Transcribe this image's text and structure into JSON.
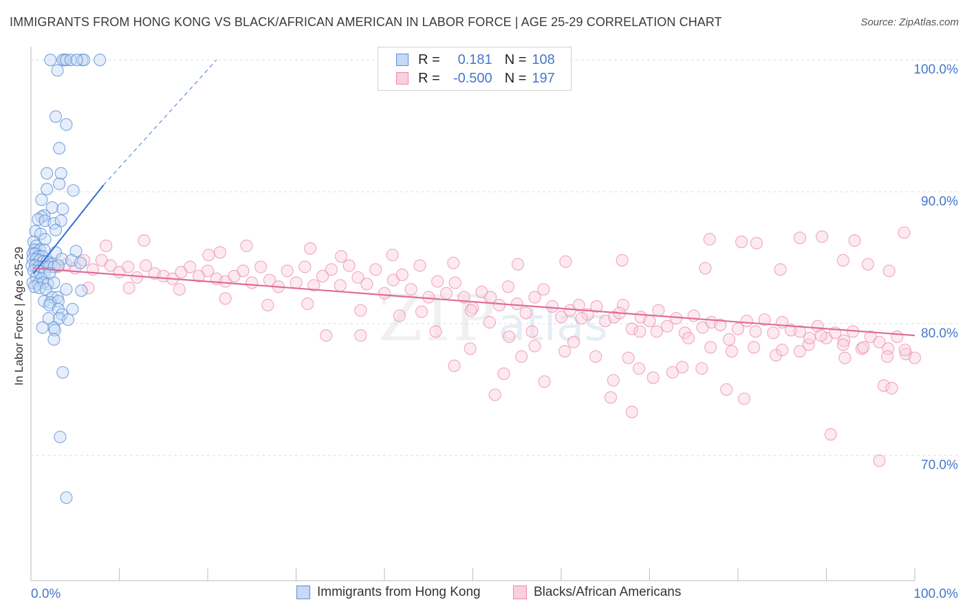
{
  "title": "IMMIGRANTS FROM HONG KONG VS BLACK/AFRICAN AMERICAN IN LABOR FORCE | AGE 25-29 CORRELATION CHART",
  "source": "Source: ZipAtlas.com",
  "watermark": {
    "main": "ZIP",
    "sub": "atlas"
  },
  "legend_top": {
    "rows": [
      {
        "r_label": "R =",
        "r_value": "0.181",
        "n_label": "N =",
        "n_value": "108"
      },
      {
        "r_label": "R =",
        "r_value": "-0.500",
        "n_label": "N =",
        "n_value": "197"
      }
    ]
  },
  "chart_data": {
    "type": "scatter",
    "title": "IMMIGRANTS FROM HONG KONG VS BLACK/AFRICAN AMERICAN IN LABOR FORCE | AGE 25-29 CORRELATION CHART",
    "xlabel": "",
    "ylabel": "In Labor Force | Age 25-29",
    "xlim": [
      0,
      100
    ],
    "ylim": [
      60.5,
      101
    ],
    "x_tick_labels": [
      "0.0%",
      "100.0%"
    ],
    "y_ticks": [
      70,
      80,
      90,
      100
    ],
    "y_tick_labels": [
      "70.0%",
      "80.0%",
      "90.0%",
      "100.0%"
    ],
    "grid": true,
    "legend_position": "bottom",
    "colors": {
      "blue": "#5b8fd8",
      "blue_fill": "#c6d9f5",
      "pink": "#ee88aa",
      "pink_fill": "#f9d0dd",
      "blue_line": "#2f6fd6",
      "pink_line": "#e06b95",
      "axis_text": "#4477cc"
    },
    "series": [
      {
        "name": "Immigrants from Hong Kong",
        "color": "#5b8fd8",
        "trend": {
          "x": [
            0.3,
            8.2
          ],
          "y": [
            83.8,
            90.5
          ],
          "extended_to": [
            21.0,
            100.0
          ]
        },
        "points": [
          [
            2.2,
            100
          ],
          [
            3.8,
            100
          ],
          [
            3.6,
            100
          ],
          [
            5.8,
            100
          ],
          [
            4.0,
            100
          ],
          [
            6.0,
            100
          ],
          [
            4.5,
            100
          ],
          [
            7.8,
            100
          ],
          [
            5.2,
            100
          ],
          [
            3.0,
            99.2
          ],
          [
            2.8,
            95.7
          ],
          [
            4.0,
            95.1
          ],
          [
            3.2,
            93.3
          ],
          [
            1.8,
            91.4
          ],
          [
            3.4,
            91.4
          ],
          [
            3.2,
            90.6
          ],
          [
            1.8,
            90.2
          ],
          [
            4.8,
            90.1
          ],
          [
            1.2,
            89.4
          ],
          [
            2.4,
            88.8
          ],
          [
            3.6,
            88.7
          ],
          [
            1.5,
            88.2
          ],
          [
            1.2,
            88.1
          ],
          [
            0.8,
            87.9
          ],
          [
            1.6,
            87.8
          ],
          [
            2.6,
            87.6
          ],
          [
            3.4,
            87.8
          ],
          [
            0.5,
            87.0
          ],
          [
            1.1,
            86.8
          ],
          [
            2.8,
            87.1
          ],
          [
            1.6,
            86.4
          ],
          [
            0.3,
            86.2
          ],
          [
            0.6,
            85.9
          ],
          [
            0.4,
            85.6
          ],
          [
            1.0,
            85.6
          ],
          [
            1.5,
            85.6
          ],
          [
            0.2,
            85.3
          ],
          [
            0.5,
            85.3
          ],
          [
            0.9,
            85.1
          ],
          [
            1.3,
            85.1
          ],
          [
            2.8,
            85.4
          ],
          [
            5.1,
            85.5
          ],
          [
            0.2,
            84.9
          ],
          [
            0.6,
            84.9
          ],
          [
            1.0,
            84.8
          ],
          [
            1.4,
            84.7
          ],
          [
            1.8,
            84.7
          ],
          [
            2.3,
            84.5
          ],
          [
            3.5,
            84.9
          ],
          [
            4.6,
            84.8
          ],
          [
            0.1,
            84.4
          ],
          [
            0.5,
            84.4
          ],
          [
            0.9,
            84.3
          ],
          [
            1.4,
            84.3
          ],
          [
            2.0,
            84.3
          ],
          [
            2.6,
            84.3
          ],
          [
            3.1,
            84.4
          ],
          [
            5.6,
            84.6
          ],
          [
            0.3,
            84.0
          ],
          [
            0.9,
            84.0
          ],
          [
            1.5,
            83.8
          ],
          [
            2.1,
            83.8
          ],
          [
            0.6,
            83.5
          ],
          [
            1.2,
            83.4
          ],
          [
            0.2,
            83.1
          ],
          [
            0.8,
            83.0
          ],
          [
            1.4,
            83.1
          ],
          [
            1.9,
            83.0
          ],
          [
            2.6,
            83.1
          ],
          [
            0.4,
            82.8
          ],
          [
            1.0,
            82.7
          ],
          [
            1.7,
            82.6
          ],
          [
            4.0,
            82.6
          ],
          [
            5.7,
            82.5
          ],
          [
            2.4,
            82.0
          ],
          [
            3.0,
            82.0
          ],
          [
            1.5,
            81.7
          ],
          [
            2.2,
            81.6
          ],
          [
            3.1,
            81.7
          ],
          [
            2.1,
            81.4
          ],
          [
            3.1,
            81.1
          ],
          [
            4.7,
            81.1
          ],
          [
            3.5,
            80.7
          ],
          [
            2.0,
            80.4
          ],
          [
            3.2,
            80.4
          ],
          [
            4.2,
            80.3
          ],
          [
            2.6,
            79.7
          ],
          [
            1.3,
            79.7
          ],
          [
            2.7,
            79.5
          ],
          [
            2.6,
            78.8
          ],
          [
            3.6,
            76.3
          ],
          [
            3.3,
            71.4
          ],
          [
            4.0,
            66.8
          ]
        ]
      },
      {
        "name": "Blacks/African Americans",
        "color": "#ee88aa",
        "trend": {
          "x": [
            0.3,
            100.0
          ],
          "y": [
            84.2,
            79.1
          ]
        },
        "points": [
          [
            2.0,
            84.6
          ],
          [
            3.0,
            84.3
          ],
          [
            4.0,
            84.5
          ],
          [
            5.0,
            84.2
          ],
          [
            6.0,
            84.8
          ],
          [
            7.0,
            84.1
          ],
          [
            8.0,
            84.8
          ],
          [
            9.0,
            84.4
          ],
          [
            10.0,
            83.9
          ],
          [
            11.0,
            84.3
          ],
          [
            12.0,
            83.5
          ],
          [
            13.0,
            84.4
          ],
          [
            14.0,
            83.8
          ],
          [
            15.0,
            83.6
          ],
          [
            16.0,
            83.4
          ],
          [
            17.0,
            83.9
          ],
          [
            18.0,
            84.3
          ],
          [
            19.0,
            83.6
          ],
          [
            20.0,
            84.0
          ],
          [
            21.0,
            83.4
          ],
          [
            22.0,
            83.2
          ],
          [
            23.0,
            83.6
          ],
          [
            24.0,
            84.0
          ],
          [
            25.0,
            83.1
          ],
          [
            26.0,
            84.3
          ],
          [
            27.0,
            83.3
          ],
          [
            28.0,
            82.8
          ],
          [
            29.0,
            84.0
          ],
          [
            30.0,
            83.1
          ],
          [
            31.0,
            84.3
          ],
          [
            32.0,
            82.9
          ],
          [
            33.0,
            83.6
          ],
          [
            34.0,
            84.1
          ],
          [
            35.0,
            82.9
          ],
          [
            36.0,
            84.4
          ],
          [
            37.0,
            83.5
          ],
          [
            38.0,
            83.0
          ],
          [
            39.0,
            84.1
          ],
          [
            40.0,
            82.3
          ],
          [
            41.0,
            83.3
          ],
          [
            42.0,
            83.7
          ],
          [
            43.0,
            82.6
          ],
          [
            44.0,
            84.4
          ],
          [
            45.0,
            82.0
          ],
          [
            46.0,
            83.2
          ],
          [
            47.0,
            82.3
          ],
          [
            48.0,
            83.1
          ],
          [
            49.0,
            82.0
          ],
          [
            50.0,
            81.2
          ],
          [
            51.0,
            82.4
          ],
          [
            52.0,
            82.0
          ],
          [
            53.0,
            81.4
          ],
          [
            54.0,
            82.8
          ],
          [
            55.0,
            81.5
          ],
          [
            56.0,
            80.8
          ],
          [
            57.0,
            82.0
          ],
          [
            58.0,
            82.6
          ],
          [
            59.0,
            81.3
          ],
          [
            60.0,
            80.5
          ],
          [
            61.0,
            81.0
          ],
          [
            62.0,
            81.4
          ],
          [
            63.0,
            80.7
          ],
          [
            64.0,
            81.3
          ],
          [
            65.0,
            80.2
          ],
          [
            66.0,
            80.5
          ],
          [
            67.0,
            81.4
          ],
          [
            68.0,
            79.6
          ],
          [
            69.0,
            80.5
          ],
          [
            70.0,
            80.2
          ],
          [
            71.0,
            81.0
          ],
          [
            72.0,
            79.8
          ],
          [
            73.0,
            80.4
          ],
          [
            74.0,
            79.3
          ],
          [
            75.0,
            80.6
          ],
          [
            76.0,
            79.7
          ],
          [
            77.0,
            80.1
          ],
          [
            78.0,
            79.9
          ],
          [
            79.0,
            78.8
          ],
          [
            80.0,
            79.6
          ],
          [
            81.0,
            80.2
          ],
          [
            82.0,
            79.4
          ],
          [
            83.0,
            80.3
          ],
          [
            84.0,
            79.3
          ],
          [
            85.0,
            80.1
          ],
          [
            86.0,
            79.5
          ],
          [
            87.0,
            79.4
          ],
          [
            88.0,
            78.4
          ],
          [
            89.0,
            79.8
          ],
          [
            90.0,
            78.9
          ],
          [
            91.0,
            79.3
          ],
          [
            92.0,
            78.7
          ],
          [
            93.0,
            79.4
          ],
          [
            94.0,
            78.1
          ],
          [
            95.0,
            79.0
          ],
          [
            96.0,
            78.6
          ],
          [
            97.0,
            78.1
          ],
          [
            98.0,
            79.0
          ],
          [
            99.0,
            77.7
          ],
          [
            100.0,
            77.4
          ],
          [
            8.5,
            85.9
          ],
          [
            12.8,
            86.3
          ],
          [
            20.1,
            85.2
          ],
          [
            21.4,
            85.4
          ],
          [
            24.4,
            85.9
          ],
          [
            31.6,
            85.7
          ],
          [
            35.1,
            85.1
          ],
          [
            40.9,
            85.2
          ],
          [
            47.8,
            84.6
          ],
          [
            55.1,
            84.5
          ],
          [
            60.5,
            84.7
          ],
          [
            66.9,
            84.8
          ],
          [
            76.3,
            84.2
          ],
          [
            84.8,
            84.1
          ],
          [
            91.9,
            84.8
          ],
          [
            94.7,
            84.5
          ],
          [
            97.1,
            84.0
          ],
          [
            6.5,
            82.7
          ],
          [
            11.1,
            82.7
          ],
          [
            16.8,
            82.6
          ],
          [
            22.0,
            81.9
          ],
          [
            26.8,
            81.4
          ],
          [
            31.3,
            81.5
          ],
          [
            37.3,
            81.0
          ],
          [
            41.7,
            80.6
          ],
          [
            44.2,
            80.9
          ],
          [
            49.8,
            81.0
          ],
          [
            51.9,
            80.1
          ],
          [
            56.7,
            79.4
          ],
          [
            57.0,
            78.3
          ],
          [
            61.4,
            78.6
          ],
          [
            62.3,
            80.4
          ],
          [
            66.6,
            80.8
          ],
          [
            68.9,
            79.4
          ],
          [
            70.8,
            79.4
          ],
          [
            74.4,
            78.9
          ],
          [
            76.9,
            78.2
          ],
          [
            79.3,
            77.9
          ],
          [
            81.8,
            78.2
          ],
          [
            84.3,
            77.6
          ],
          [
            87.0,
            77.9
          ],
          [
            89.4,
            79.1
          ],
          [
            91.9,
            78.4
          ],
          [
            94.2,
            78.2
          ],
          [
            96.9,
            77.5
          ],
          [
            98.9,
            78.0
          ],
          [
            33.4,
            79.1
          ],
          [
            37.3,
            79.1
          ],
          [
            45.8,
            79.4
          ],
          [
            47.9,
            76.8
          ],
          [
            49.7,
            78.1
          ],
          [
            53.5,
            76.2
          ],
          [
            54.1,
            79.0
          ],
          [
            55.5,
            77.5
          ],
          [
            58.1,
            75.6
          ],
          [
            60.4,
            77.9
          ],
          [
            63.9,
            77.5
          ],
          [
            65.9,
            75.7
          ],
          [
            67.6,
            77.4
          ],
          [
            68.8,
            76.6
          ],
          [
            70.4,
            75.9
          ],
          [
            72.6,
            76.3
          ],
          [
            73.7,
            76.7
          ],
          [
            75.9,
            76.6
          ],
          [
            78.7,
            75.0
          ],
          [
            85.0,
            78.0
          ],
          [
            88.1,
            78.9
          ],
          [
            92.1,
            77.4
          ],
          [
            96.5,
            75.3
          ],
          [
            52.5,
            74.6
          ],
          [
            65.6,
            74.4
          ],
          [
            68.0,
            73.3
          ],
          [
            80.7,
            74.3
          ],
          [
            90.5,
            71.6
          ],
          [
            96.0,
            69.6
          ],
          [
            97.4,
            75.1
          ],
          [
            76.8,
            86.4
          ],
          [
            80.4,
            86.2
          ],
          [
            82.1,
            86.1
          ],
          [
            87.0,
            86.5
          ],
          [
            89.5,
            86.6
          ],
          [
            93.2,
            86.3
          ],
          [
            98.8,
            86.9
          ]
        ]
      }
    ]
  },
  "bottom_legend": [
    {
      "label": "Immigrants from Hong Kong"
    },
    {
      "label": "Blacks/African Americans"
    }
  ]
}
